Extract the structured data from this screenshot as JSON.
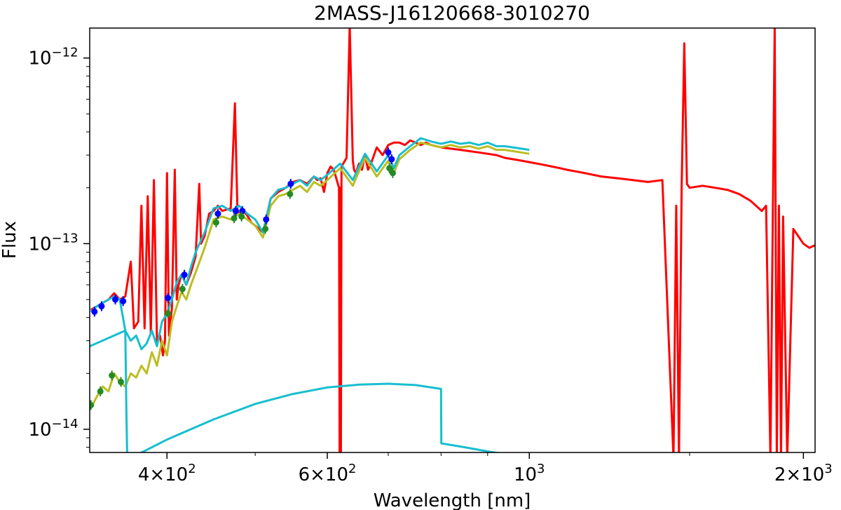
{
  "chart_data": {
    "type": "line",
    "title": "2MASS-J16120668-3010270",
    "xlabel": "Wavelength [nm]",
    "ylabel": "Flux",
    "xscale": "log",
    "yscale": "log",
    "xlim": [
      329,
      2060
    ],
    "ylim": [
      7.5e-15,
      1.45e-12
    ],
    "grid": false,
    "x_ticks": [
      {
        "value": 400,
        "mantissa": "4",
        "times": "×",
        "base": "10",
        "exp": "2"
      },
      {
        "value": 600,
        "mantissa": "6",
        "times": "×",
        "base": "10",
        "exp": "2"
      },
      {
        "value": 1000,
        "mantissa": "",
        "times": "",
        "base": "10",
        "exp": "3"
      },
      {
        "value": 2000,
        "mantissa": "2",
        "times": "×",
        "base": "10",
        "exp": "3"
      }
    ],
    "y_ticks": [
      {
        "value": 1e-12,
        "base": "10",
        "exp": "−12"
      },
      {
        "value": 1e-13,
        "base": "10",
        "exp": "−13"
      },
      {
        "value": 1e-14,
        "base": "10",
        "exp": "−14"
      }
    ],
    "colors": {
      "observed": "#ff0000",
      "model": "#17becf",
      "model_reddened": "#bcbd22",
      "photometry_blue": "#0000ff",
      "photometry_green": "#228b22"
    },
    "series": [
      {
        "key": "model_reddened",
        "x": [
          330,
          335,
          340,
          345,
          350,
          355,
          360,
          365,
          370,
          375,
          380,
          385,
          390,
          395,
          400,
          405,
          410,
          415,
          420,
          425,
          430,
          440,
          450,
          460,
          470,
          480,
          490,
          500,
          510,
          520,
          530,
          540,
          550,
          560,
          570,
          580,
          590,
          600,
          620,
          640,
          650,
          660,
          680,
          700,
          710,
          720,
          740,
          760,
          780,
          800,
          820,
          840,
          860,
          880,
          900,
          920,
          940,
          960,
          980,
          1000
        ],
        "y": [
          1.3e-14,
          1.5e-14,
          1.7e-14,
          1.6e-14,
          2e-14,
          1.8e-14,
          1.7e-14,
          2e-14,
          1.9e-14,
          2.2e-14,
          2e-14,
          2.6e-14,
          2.2e-14,
          3e-14,
          2.5e-14,
          3.8e-14,
          4.6e-14,
          5.5e-14,
          5e-14,
          6e-14,
          7e-14,
          9.5e-14,
          1.35e-13,
          1.4e-13,
          1.35e-13,
          1.45e-13,
          1.35e-13,
          1.25e-13,
          1.08e-13,
          1.6e-13,
          1.8e-13,
          1.85e-13,
          1.95e-13,
          2.05e-13,
          1.9e-13,
          2.15e-13,
          2.05e-13,
          2.2e-13,
          2.55e-13,
          2.05e-13,
          2.45e-13,
          2.9e-13,
          2.3e-13,
          2.8e-13,
          2.4e-13,
          2.85e-13,
          3.2e-13,
          3.5e-13,
          3.4e-13,
          3.3e-13,
          3.4e-13,
          3.3e-13,
          3.35e-13,
          3.25e-13,
          3.35e-13,
          3.2e-13,
          3.2e-13,
          3.15e-13,
          3.1e-13,
          3.05e-13
        ]
      },
      {
        "key": "model",
        "x": [
          330,
          335,
          340,
          345,
          350,
          355,
          360,
          365,
          370,
          375,
          380,
          385,
          390,
          395,
          400,
          405,
          410,
          415,
          420,
          425,
          430,
          440,
          450,
          460,
          470,
          480,
          490,
          500,
          510,
          520,
          530,
          540,
          550,
          560,
          570,
          580,
          590,
          600,
          620,
          640,
          650,
          660,
          680,
          700,
          710,
          720,
          740,
          760,
          780,
          800,
          820,
          840,
          860,
          880,
          900,
          920,
          940,
          960,
          980,
          1000
        ],
        "y": [
          4.3e-14,
          4.6e-14,
          4.8e-14,
          5e-14,
          5.2e-14,
          5e-14,
          3.4e-14,
          3e-14,
          3.2e-14,
          2.7e-14,
          2.9e-14,
          3.4e-14,
          2.8e-14,
          3.8e-14,
          4.2e-14,
          5e-14,
          6.2e-14,
          6.8e-14,
          6e-14,
          7.5e-14,
          9e-14,
          1.15e-13,
          1.55e-13,
          1.6e-13,
          1.5e-13,
          1.6e-13,
          1.45e-13,
          1.35e-13,
          1.15e-13,
          1.75e-13,
          1.95e-13,
          2e-13,
          2.1e-13,
          2.2e-13,
          2.05e-13,
          2.3e-13,
          2.2e-13,
          2.35e-13,
          2.7e-13,
          2.2e-13,
          2.6e-13,
          3.05e-13,
          2.45e-13,
          3e-13,
          2.55e-13,
          3e-13,
          3.35e-13,
          3.7e-13,
          3.55e-13,
          3.45e-13,
          3.55e-13,
          3.45e-13,
          3.5e-13,
          3.4e-13,
          3.5e-13,
          3.35e-13,
          3.35e-13,
          3.3e-13,
          3.25e-13,
          3.2e-13
        ]
      },
      {
        "key": "model_component_hot",
        "x": [
          329,
          360,
          361,
          362
        ],
        "y": [
          2.8e-14,
          3.4e-14,
          1.2e-14,
          6e-15
        ]
      },
      {
        "key": "model_component_cool",
        "x": [
          365,
          400,
          450,
          500,
          550,
          600,
          650,
          700,
          750,
          800,
          800.5,
          850,
          900,
          950
        ],
        "y": [
          7e-15,
          8.8e-15,
          1.13e-14,
          1.37e-14,
          1.55e-14,
          1.68e-14,
          1.74e-14,
          1.76e-14,
          1.73e-14,
          1.65e-14,
          8.4e-15,
          8e-15,
          7.6e-15,
          7.3e-15
        ]
      },
      {
        "key": "observed",
        "x": [
          330,
          335,
          340,
          345,
          350,
          355,
          360,
          365,
          368,
          372,
          375,
          378,
          381,
          384,
          387,
          390,
          393,
          396,
          398,
          400,
          402,
          405,
          408,
          410,
          412,
          415,
          420,
          425,
          430,
          434,
          436,
          440,
          445,
          450,
          455,
          460,
          470,
          475,
          478,
          480,
          485,
          490,
          495,
          500,
          505,
          510,
          520,
          530,
          540,
          550,
          560,
          570,
          580,
          585,
          590,
          595,
          600,
          605,
          610,
          618,
          619,
          620,
          621,
          622,
          630,
          635,
          640,
          642,
          645,
          650,
          655,
          660,
          665,
          670,
          680,
          690,
          700,
          710,
          720,
          730,
          740,
          750,
          760,
          770,
          780,
          800,
          820,
          840,
          860,
          880,
          900,
          920,
          940,
          960,
          980,
          1000,
          1020,
          1040,
          1060,
          1080,
          1100,
          1150,
          1200,
          1250,
          1300,
          1350,
          1400,
          1440,
          1450,
          1460,
          1470,
          1480,
          1490,
          1500,
          1550,
          1600,
          1650,
          1700,
          1750,
          1800,
          1820,
          1840,
          1860,
          1870,
          1880,
          1890,
          1900,
          1920,
          1950,
          2000,
          2030,
          2060
        ],
        "y": [
          4.4e-14,
          4.6e-14,
          4.8e-14,
          5e-14,
          5.4e-14,
          5e-14,
          5.2e-14,
          8e-14,
          3.5e-14,
          3.8e-14,
          1.6e-13,
          3.5e-14,
          1.8e-13,
          3.3e-14,
          2.2e-13,
          3e-14,
          3.2e-14,
          2.5e-14,
          3e-14,
          2.4e-13,
          3.2e-14,
          4.5e-14,
          2.5e-13,
          5e-14,
          6e-14,
          6.8e-14,
          6e-14,
          7e-14,
          8.5e-14,
          2.1e-13,
          1e-13,
          1.1e-13,
          1.45e-13,
          1.5e-13,
          1.6e-13,
          1.5e-13,
          1.55e-13,
          5.7e-13,
          1.5e-13,
          1.45e-13,
          1.5e-13,
          1.42e-13,
          1.3e-13,
          1.25e-13,
          1.2e-13,
          1.15e-13,
          1.75e-13,
          1.9e-13,
          2e-13,
          2.15e-13,
          2.2e-13,
          2.1e-13,
          2.3e-13,
          2.2e-13,
          2.25e-13,
          1.9e-13,
          2.4e-13,
          2.6e-13,
          2.5e-13,
          2e-13,
          7e-15,
          2e-13,
          7e-15,
          2.6e-13,
          2.9e-13,
          1.5e-12,
          2.8e-13,
          2.5e-13,
          2.4e-13,
          2.7e-13,
          2.5e-13,
          3e-13,
          2.5e-13,
          2.7e-13,
          3.3e-13,
          3e-13,
          3.4e-13,
          3.5e-13,
          3.5e-13,
          3.4e-13,
          3.6e-13,
          3.5e-13,
          3.4e-13,
          3.5e-13,
          3.4e-13,
          3.3e-13,
          3.25e-13,
          3.2e-13,
          3.15e-13,
          3.1e-13,
          3.05e-13,
          3e-13,
          2.9e-13,
          2.85e-13,
          2.8e-13,
          2.75e-13,
          2.7e-13,
          2.65e-13,
          2.6e-13,
          2.55e-13,
          2.5e-13,
          2.4e-13,
          2.3e-13,
          2.25e-13,
          2.2e-13,
          2.15e-13,
          2.2e-13,
          7e-15,
          1.6e-13,
          7e-15,
          2e-13,
          1.2e-12,
          2.1e-13,
          2e-13,
          2.05e-13,
          2e-13,
          1.95e-13,
          1.85e-13,
          1.7e-13,
          1.5e-13,
          1.6e-13,
          7e-15,
          1.5e-12,
          7e-15,
          1.6e-13,
          7e-15,
          1.4e-13,
          7e-15,
          1.2e-13,
          1e-13,
          9.5e-14,
          9.8e-14
        ]
      }
    ],
    "photometry": [
      {
        "color": "photometry_blue",
        "x": 333,
        "y": 4.3e-14
      },
      {
        "color": "photometry_blue",
        "x": 339,
        "y": 4.6e-14
      },
      {
        "color": "photometry_blue",
        "x": 351,
        "y": 5e-14
      },
      {
        "color": "photometry_blue",
        "x": 358,
        "y": 4.9e-14
      },
      {
        "color": "photometry_blue",
        "x": 401,
        "y": 5.1e-14
      },
      {
        "color": "photometry_blue",
        "x": 418,
        "y": 6.8e-14
      },
      {
        "color": "photometry_blue",
        "x": 455,
        "y": 1.45e-13
      },
      {
        "color": "photometry_blue",
        "x": 476,
        "y": 1.5e-13
      },
      {
        "color": "photometry_blue",
        "x": 484,
        "y": 1.5e-13
      },
      {
        "color": "photometry_blue",
        "x": 514,
        "y": 1.35e-13
      },
      {
        "color": "photometry_blue",
        "x": 547,
        "y": 2.1e-13
      },
      {
        "color": "photometry_blue",
        "x": 700,
        "y": 3.1e-13
      },
      {
        "color": "photometry_blue",
        "x": 706,
        "y": 2.85e-13
      },
      {
        "color": "photometry_green",
        "x": 330,
        "y": 1.35e-14
      },
      {
        "color": "photometry_green",
        "x": 338,
        "y": 1.6e-14
      },
      {
        "color": "photometry_green",
        "x": 348,
        "y": 1.95e-14
      },
      {
        "color": "photometry_green",
        "x": 356,
        "y": 1.8e-14
      },
      {
        "color": "photometry_green",
        "x": 401,
        "y": 4.2e-14
      },
      {
        "color": "photometry_green",
        "x": 416,
        "y": 5.7e-14
      },
      {
        "color": "photometry_green",
        "x": 453,
        "y": 1.3e-13
      },
      {
        "color": "photometry_green",
        "x": 474,
        "y": 1.37e-13
      },
      {
        "color": "photometry_green",
        "x": 483,
        "y": 1.4e-13
      },
      {
        "color": "photometry_green",
        "x": 513,
        "y": 1.2e-13
      },
      {
        "color": "photometry_green",
        "x": 546,
        "y": 1.85e-13
      },
      {
        "color": "photometry_green",
        "x": 702,
        "y": 2.55e-13
      },
      {
        "color": "photometry_green",
        "x": 708,
        "y": 2.4e-13
      }
    ]
  }
}
